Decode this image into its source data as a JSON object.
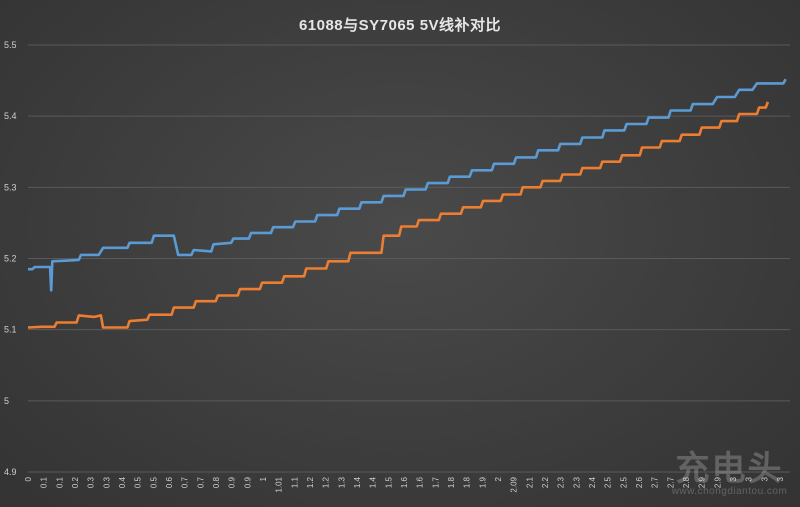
{
  "chart_data": {
    "type": "line",
    "title": "61088与SY7065 5V线补对比",
    "ylim": [
      4.9,
      5.5
    ],
    "yticks": [
      "4.9",
      "5",
      "5.1",
      "5.2",
      "5.3",
      "5.4",
      "5.5"
    ],
    "grid": true,
    "xticks": [
      "0",
      "0.1",
      "0.1",
      "0.2",
      "0.3",
      "0.3",
      "0.4",
      "0.5",
      "0.5",
      "0.6",
      "0.7",
      "0.7",
      "0.8",
      "0.9",
      "0.9",
      "1",
      "1.01",
      "1.1",
      "1.2",
      "1.2",
      "1.3",
      "1.4",
      "1.4",
      "1.5",
      "1.6",
      "1.6",
      "1.7",
      "1.8",
      "1.8",
      "1.9",
      "2",
      "2.09",
      "2.1",
      "2.2",
      "2.3",
      "2.3",
      "2.4",
      "2.5",
      "2.5",
      "2.6",
      "2.7",
      "2.7",
      "2.8",
      "2.9",
      "2.9",
      "3",
      "3",
      "3",
      "3"
    ],
    "series": [
      {
        "color": "#5b9bd5",
        "points": [
          [
            0,
            5.185
          ],
          [
            0.02,
            5.185
          ],
          [
            0.03,
            5.188
          ],
          [
            0.09,
            5.188
          ],
          [
            0.1,
            5.188
          ],
          [
            0.105,
            5.155
          ],
          [
            0.11,
            5.196
          ],
          [
            0.18,
            5.197
          ],
          [
            0.23,
            5.198
          ],
          [
            0.24,
            5.205
          ],
          [
            0.32,
            5.205
          ],
          [
            0.34,
            5.215
          ],
          [
            0.45,
            5.215
          ],
          [
            0.46,
            5.222
          ],
          [
            0.56,
            5.222
          ],
          [
            0.57,
            5.232
          ],
          [
            0.66,
            5.232
          ],
          [
            0.68,
            5.205
          ],
          [
            0.74,
            5.205
          ],
          [
            0.75,
            5.212
          ],
          [
            0.83,
            5.21
          ],
          [
            0.84,
            5.22
          ],
          [
            0.92,
            5.222
          ],
          [
            0.93,
            5.228
          ],
          [
            1.0,
            5.228
          ],
          [
            1.01,
            5.236
          ],
          [
            1.1,
            5.236
          ],
          [
            1.11,
            5.244
          ],
          [
            1.2,
            5.244
          ],
          [
            1.21,
            5.252
          ],
          [
            1.3,
            5.252
          ],
          [
            1.31,
            5.261
          ],
          [
            1.4,
            5.261
          ],
          [
            1.41,
            5.27
          ],
          [
            1.5,
            5.27
          ],
          [
            1.51,
            5.279
          ],
          [
            1.6,
            5.279
          ],
          [
            1.61,
            5.288
          ],
          [
            1.7,
            5.288
          ],
          [
            1.71,
            5.297
          ],
          [
            1.8,
            5.297
          ],
          [
            1.81,
            5.306
          ],
          [
            1.9,
            5.306
          ],
          [
            1.91,
            5.315
          ],
          [
            2.0,
            5.315
          ],
          [
            2.01,
            5.324
          ],
          [
            2.1,
            5.324
          ],
          [
            2.11,
            5.333
          ],
          [
            2.2,
            5.333
          ],
          [
            2.21,
            5.342
          ],
          [
            2.3,
            5.342
          ],
          [
            2.31,
            5.352
          ],
          [
            2.4,
            5.352
          ],
          [
            2.41,
            5.361
          ],
          [
            2.5,
            5.361
          ],
          [
            2.51,
            5.37
          ],
          [
            2.6,
            5.37
          ],
          [
            2.61,
            5.38
          ],
          [
            2.7,
            5.38
          ],
          [
            2.71,
            5.389
          ],
          [
            2.8,
            5.389
          ],
          [
            2.81,
            5.398
          ],
          [
            2.9,
            5.398
          ],
          [
            2.91,
            5.408
          ],
          [
            3.0,
            5.408
          ],
          [
            3.01,
            5.417
          ],
          [
            3.1,
            5.417
          ],
          [
            3.12,
            5.427
          ],
          [
            3.2,
            5.427
          ],
          [
            3.22,
            5.437
          ],
          [
            3.28,
            5.437
          ],
          [
            3.3,
            5.446
          ],
          [
            3.42,
            5.446
          ],
          [
            3.43,
            5.452
          ]
        ]
      },
      {
        "color": "#ed7d31",
        "points": [
          [
            0,
            5.103
          ],
          [
            0.06,
            5.104
          ],
          [
            0.12,
            5.104
          ],
          [
            0.13,
            5.11
          ],
          [
            0.22,
            5.11
          ],
          [
            0.23,
            5.12
          ],
          [
            0.3,
            5.118
          ],
          [
            0.33,
            5.12
          ],
          [
            0.34,
            5.103
          ],
          [
            0.45,
            5.103
          ],
          [
            0.46,
            5.112
          ],
          [
            0.54,
            5.114
          ],
          [
            0.55,
            5.121
          ],
          [
            0.65,
            5.121
          ],
          [
            0.66,
            5.131
          ],
          [
            0.75,
            5.131
          ],
          [
            0.76,
            5.14
          ],
          [
            0.85,
            5.14
          ],
          [
            0.86,
            5.148
          ],
          [
            0.95,
            5.148
          ],
          [
            0.96,
            5.157
          ],
          [
            1.05,
            5.157
          ],
          [
            1.06,
            5.166
          ],
          [
            1.15,
            5.166
          ],
          [
            1.16,
            5.175
          ],
          [
            1.25,
            5.175
          ],
          [
            1.26,
            5.186
          ],
          [
            1.35,
            5.186
          ],
          [
            1.36,
            5.196
          ],
          [
            1.45,
            5.196
          ],
          [
            1.46,
            5.208
          ],
          [
            1.6,
            5.208
          ],
          [
            1.61,
            5.232
          ],
          [
            1.68,
            5.232
          ],
          [
            1.69,
            5.245
          ],
          [
            1.76,
            5.245
          ],
          [
            1.77,
            5.254
          ],
          [
            1.86,
            5.254
          ],
          [
            1.87,
            5.263
          ],
          [
            1.96,
            5.263
          ],
          [
            1.97,
            5.272
          ],
          [
            2.05,
            5.272
          ],
          [
            2.06,
            5.281
          ],
          [
            2.14,
            5.281
          ],
          [
            2.15,
            5.29
          ],
          [
            2.23,
            5.29
          ],
          [
            2.24,
            5.3
          ],
          [
            2.32,
            5.3
          ],
          [
            2.33,
            5.309
          ],
          [
            2.41,
            5.309
          ],
          [
            2.42,
            5.318
          ],
          [
            2.5,
            5.318
          ],
          [
            2.51,
            5.327
          ],
          [
            2.59,
            5.327
          ],
          [
            2.6,
            5.336
          ],
          [
            2.68,
            5.336
          ],
          [
            2.69,
            5.345
          ],
          [
            2.77,
            5.345
          ],
          [
            2.78,
            5.356
          ],
          [
            2.86,
            5.356
          ],
          [
            2.87,
            5.365
          ],
          [
            2.95,
            5.365
          ],
          [
            2.96,
            5.374
          ],
          [
            3.04,
            5.374
          ],
          [
            3.05,
            5.384
          ],
          [
            3.13,
            5.384
          ],
          [
            3.14,
            5.393
          ],
          [
            3.21,
            5.393
          ],
          [
            3.22,
            5.403
          ],
          [
            3.3,
            5.403
          ],
          [
            3.31,
            5.412
          ],
          [
            3.34,
            5.412
          ],
          [
            3.35,
            5.42
          ]
        ]
      }
    ]
  },
  "watermark": {
    "main": "充电头",
    "url": "www.chongdiantou.com"
  }
}
